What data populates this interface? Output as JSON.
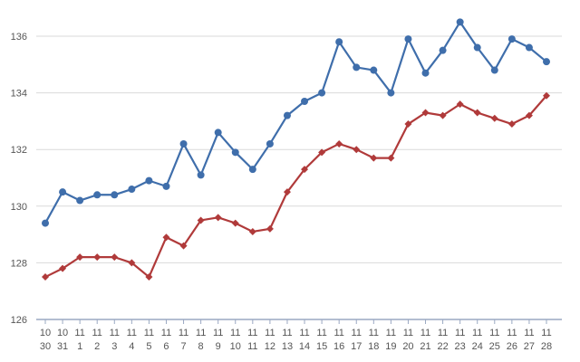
{
  "chart_data": {
    "type": "line",
    "title": "",
    "xlabel": "",
    "ylabel": "",
    "ylim": [
      126,
      136
    ],
    "yticks": [
      126,
      128,
      130,
      132,
      134,
      136
    ],
    "grid": true,
    "legend": "none",
    "categories": [
      {
        "month": "10",
        "day": "30"
      },
      {
        "month": "10",
        "day": "31"
      },
      {
        "month": "11",
        "day": "1"
      },
      {
        "month": "11",
        "day": "2"
      },
      {
        "month": "11",
        "day": "3"
      },
      {
        "month": "11",
        "day": "4"
      },
      {
        "month": "11",
        "day": "5"
      },
      {
        "month": "11",
        "day": "6"
      },
      {
        "month": "11",
        "day": "7"
      },
      {
        "month": "11",
        "day": "8"
      },
      {
        "month": "11",
        "day": "9"
      },
      {
        "month": "11",
        "day": "10"
      },
      {
        "month": "11",
        "day": "11"
      },
      {
        "month": "11",
        "day": "12"
      },
      {
        "month": "11",
        "day": "13"
      },
      {
        "month": "11",
        "day": "14"
      },
      {
        "month": "11",
        "day": "15"
      },
      {
        "month": "11",
        "day": "16"
      },
      {
        "month": "11",
        "day": "17"
      },
      {
        "month": "11",
        "day": "18"
      },
      {
        "month": "11",
        "day": "19"
      },
      {
        "month": "11",
        "day": "20"
      },
      {
        "month": "11",
        "day": "21"
      },
      {
        "month": "11",
        "day": "22"
      },
      {
        "month": "11",
        "day": "23"
      },
      {
        "month": "11",
        "day": "24"
      },
      {
        "month": "11",
        "day": "25"
      },
      {
        "month": "11",
        "day": "26"
      },
      {
        "month": "11",
        "day": "27"
      },
      {
        "month": "11",
        "day": "28"
      }
    ],
    "series": [
      {
        "color": "#3f6eab",
        "marker": "circle",
        "values": [
          129.4,
          130.5,
          130.2,
          130.4,
          130.4,
          130.6,
          130.9,
          130.7,
          132.2,
          131.1,
          132.6,
          131.9,
          131.3,
          132.2,
          133.2,
          133.7,
          134.0,
          135.8,
          134.9,
          134.8,
          134.0,
          135.9,
          134.7,
          135.5,
          136.5,
          135.6,
          134.8,
          135.9,
          135.6,
          135.1
        ]
      },
      {
        "color": "#b03a3a",
        "marker": "diamond",
        "values": [
          127.5,
          127.8,
          128.2,
          128.2,
          128.2,
          128.0,
          127.5,
          128.9,
          128.6,
          129.5,
          129.6,
          129.4,
          129.1,
          129.2,
          130.5,
          131.3,
          131.9,
          132.2,
          132.0,
          131.7,
          131.7,
          132.9,
          133.3,
          133.2,
          133.6,
          133.3,
          133.1,
          132.9,
          133.2,
          133.9
        ]
      }
    ],
    "grid_color": "#d9d9d9",
    "axis_color": "#9aa8c2"
  }
}
